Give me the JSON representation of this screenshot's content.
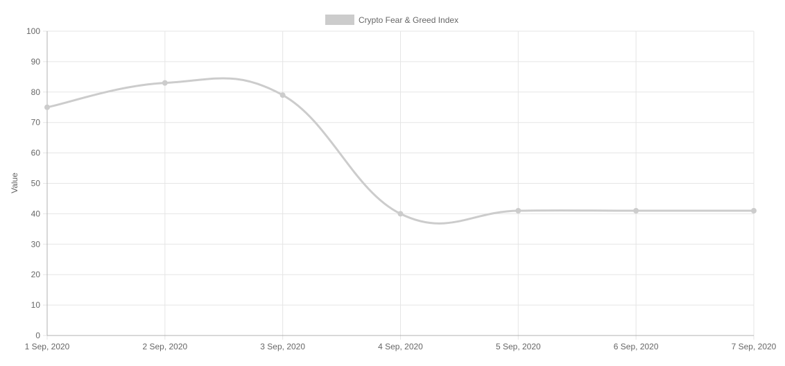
{
  "chart_data": {
    "type": "line",
    "legend": {
      "label": "Crypto Fear & Greed Index",
      "position": "top",
      "swatch_color": "#cccccc"
    },
    "ylabel": "Value",
    "xlabel": "",
    "ylim": [
      0,
      100
    ],
    "y_ticks": [
      0,
      10,
      20,
      30,
      40,
      50,
      60,
      70,
      80,
      90,
      100
    ],
    "categories": [
      "1 Sep, 2020",
      "2 Sep, 2020",
      "3 Sep, 2020",
      "4 Sep, 2020",
      "5 Sep, 2020",
      "6 Sep, 2020",
      "7 Sep, 2020"
    ],
    "series": [
      {
        "name": "Crypto Fear & Greed Index",
        "values": [
          75,
          83,
          79,
          40,
          41,
          41,
          41
        ],
        "color": "#cccccc"
      }
    ],
    "grid": true,
    "colors": {
      "grid": "#e5e5e5",
      "axis": "#b0b0b0",
      "tick_text": "#666666"
    }
  }
}
